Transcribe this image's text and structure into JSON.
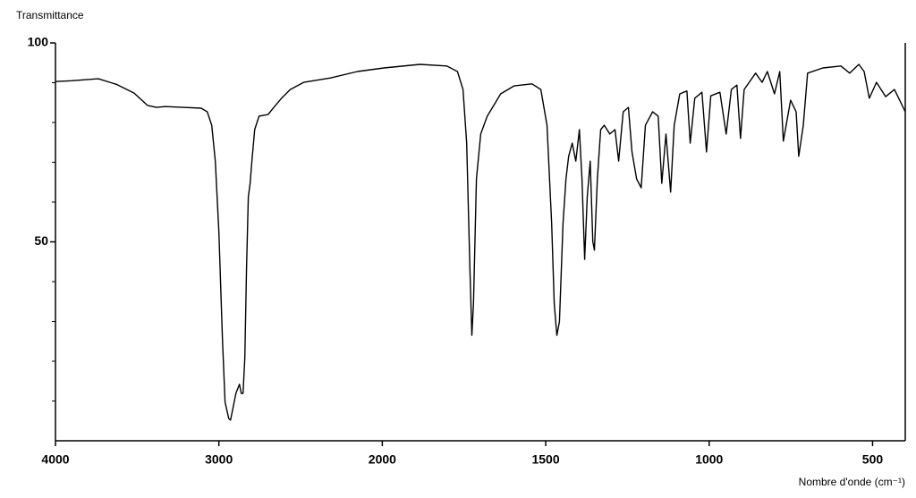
{
  "chart_data": {
    "type": "line",
    "y_label": "Transmittance",
    "x_label": "Nombre d'onde (cm⁻¹)",
    "xlim": [
      4000,
      400
    ],
    "xticks": [
      4000,
      3000,
      2000,
      1500,
      1000,
      500
    ],
    "ylim": [
      0,
      100
    ],
    "yticks": [
      50,
      100
    ],
    "yminorticks": [
      10,
      20,
      30,
      40,
      60,
      70,
      80,
      90
    ],
    "series": [
      {
        "color": "#000000",
        "x": [
          4000,
          3902,
          3738,
          3628,
          3519,
          3437,
          3383,
          3328,
          3219,
          3109,
          3071,
          3044,
          3022,
          3000,
          2978,
          2962,
          2940,
          2929,
          2918,
          2896,
          2874,
          2863,
          2852,
          2841,
          2831,
          2820,
          2809,
          2798,
          2781,
          2754,
          2699,
          2672,
          2617,
          2563,
          2481,
          2317,
          2153,
          1995,
          1885,
          1803,
          1770,
          1753,
          1742,
          1732,
          1726,
          1721,
          1712,
          1699,
          1679,
          1638,
          1597,
          1542,
          1515,
          1496,
          1482,
          1474,
          1466,
          1458,
          1447,
          1438,
          1430,
          1419,
          1408,
          1397,
          1389,
          1381,
          1373,
          1364,
          1356,
          1351,
          1342,
          1332,
          1321,
          1304,
          1288,
          1277,
          1263,
          1247,
          1236,
          1222,
          1208,
          1195,
          1173,
          1156,
          1145,
          1132,
          1118,
          1107,
          1090,
          1068,
          1058,
          1044,
          1022,
          1008,
          995,
          967,
          948,
          932,
          915,
          904,
          893,
          858,
          838,
          822,
          800,
          784,
          773,
          751,
          734,
          726,
          712,
          699,
          652,
          597,
          570,
          542,
          526,
          510,
          488,
          460,
          433,
          400
        ],
        "values": [
          90.3,
          90.5,
          91,
          89.6,
          87.4,
          84.3,
          83.8,
          84,
          83.8,
          83.6,
          82.7,
          79.3,
          70.3,
          52.4,
          25.4,
          9.7,
          5.6,
          5.2,
          7.4,
          11.9,
          14.2,
          11.9,
          11.9,
          20.9,
          43.4,
          61.3,
          64.7,
          70.3,
          78.2,
          81.6,
          82,
          83.4,
          86.1,
          88.3,
          90.1,
          91.2,
          92.8,
          93.7,
          94.6,
          94.2,
          92.8,
          88.3,
          74.8,
          43.4,
          26.5,
          34.4,
          65.8,
          77.1,
          81.6,
          87.2,
          89.2,
          89.7,
          88.3,
          79.3,
          54.6,
          34.4,
          26.5,
          29.9,
          54.6,
          65.8,
          71.5,
          74.8,
          70.3,
          78.2,
          65.8,
          45.6,
          61.3,
          70.3,
          50.1,
          47.9,
          65.8,
          78.2,
          79.3,
          77.1,
          78.2,
          70.3,
          82.7,
          83.8,
          72.6,
          65.8,
          63.6,
          79.3,
          82.7,
          81.6,
          64.7,
          77.1,
          62.5,
          79.3,
          87.2,
          87.9,
          74.8,
          86.1,
          87.6,
          72.6,
          86.7,
          87.6,
          77.1,
          88.3,
          89.4,
          76,
          88.3,
          92.4,
          90.1,
          92.8,
          87.2,
          92.8,
          75.3,
          85.6,
          82.7,
          71.5,
          79.3,
          92.4,
          93.7,
          94.2,
          92.4,
          94.6,
          92.8,
          86.1,
          90.1,
          86.5,
          88.3,
          82.7
        ]
      }
    ]
  }
}
